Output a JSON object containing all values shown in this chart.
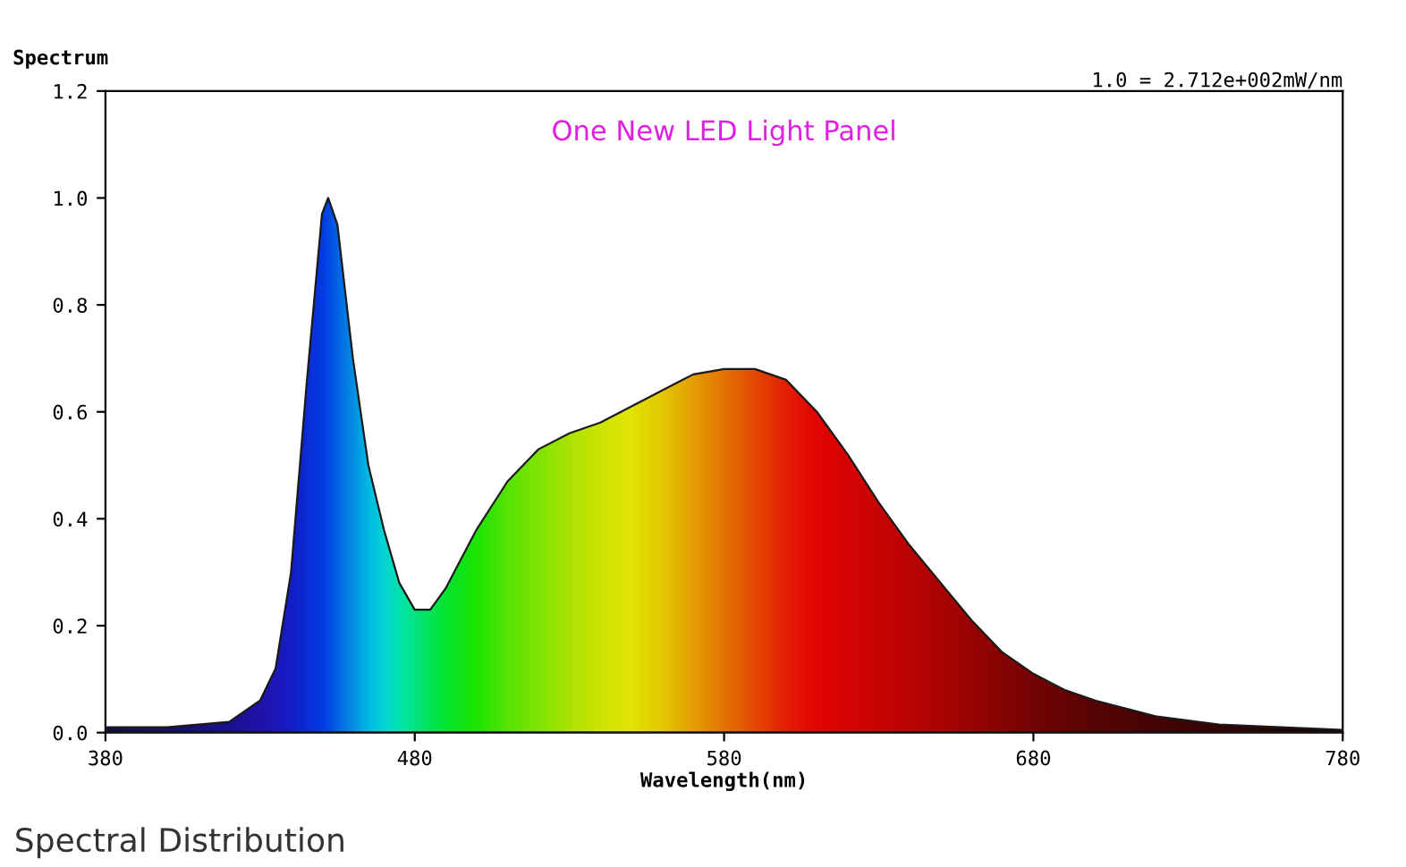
{
  "chart_data": {
    "type": "area",
    "title": "One New LED Light Panel",
    "ylabel": "Spectrum",
    "xlabel": "Wavelength(nm)",
    "annotations": [
      "1.0 = 2.712e+002mW/nm",
      "Spectral Distribution"
    ],
    "x": [
      380,
      400,
      420,
      430,
      435,
      440,
      445,
      450,
      452,
      455,
      460,
      465,
      470,
      475,
      480,
      485,
      490,
      500,
      510,
      520,
      530,
      540,
      550,
      560,
      570,
      580,
      590,
      600,
      610,
      620,
      630,
      640,
      650,
      660,
      670,
      680,
      690,
      700,
      720,
      740,
      760,
      780
    ],
    "series": [
      {
        "color": "#1a1a1a",
        "values": [
          0.01,
          0.01,
          0.02,
          0.06,
          0.12,
          0.3,
          0.65,
          0.97,
          1.0,
          0.95,
          0.7,
          0.5,
          0.38,
          0.28,
          0.23,
          0.23,
          0.27,
          0.38,
          0.47,
          0.53,
          0.56,
          0.58,
          0.61,
          0.64,
          0.67,
          0.68,
          0.68,
          0.66,
          0.6,
          0.52,
          0.43,
          0.35,
          0.28,
          0.21,
          0.15,
          0.11,
          0.08,
          0.06,
          0.03,
          0.015,
          0.01,
          0.005
        ],
        "colors": [
          "#10104a",
          "#151070",
          "#1a10a0",
          "#2010c0",
          "#2018d0",
          "#1020e0",
          "#0a30f0",
          "#0040ff",
          "#0050ff",
          "#0070ff",
          "#00a0ff",
          "#00d0ff",
          "#00f0f0",
          "#00ffc0",
          "#00ff90",
          "#00ff60",
          "#00ff30",
          "#20ff00",
          "#60ff00",
          "#90ff00",
          "#c0ff00",
          "#e8ff00",
          "#ffff00",
          "#ffe000",
          "#ffb000",
          "#ff8000",
          "#ff5000",
          "#ff2000",
          "#ff0000",
          "#f00000",
          "#e00000",
          "#d00000",
          "#c00000",
          "#aa0000",
          "#960000",
          "#800000",
          "#700000",
          "#600000",
          "#4a0000",
          "#380000",
          "#280000",
          "#200000"
        ]
      }
    ],
    "xlim": [
      380,
      780
    ],
    "xticks": [
      380,
      480,
      580,
      680,
      780
    ],
    "ylim": [
      0,
      1.2
    ],
    "yticks": [
      {
        "value": 0,
        "label": "0.0"
      },
      {
        "value": 0.2,
        "label": "0.2"
      },
      {
        "value": 0.4,
        "label": "0.4"
      },
      {
        "value": 0.6,
        "label": "0.6"
      },
      {
        "value": 0.8,
        "label": "0.8"
      },
      {
        "value": 1.0,
        "label": "1.0"
      },
      {
        "value": 1.2,
        "label": "1.2"
      }
    ],
    "grid": false,
    "legend": false
  }
}
